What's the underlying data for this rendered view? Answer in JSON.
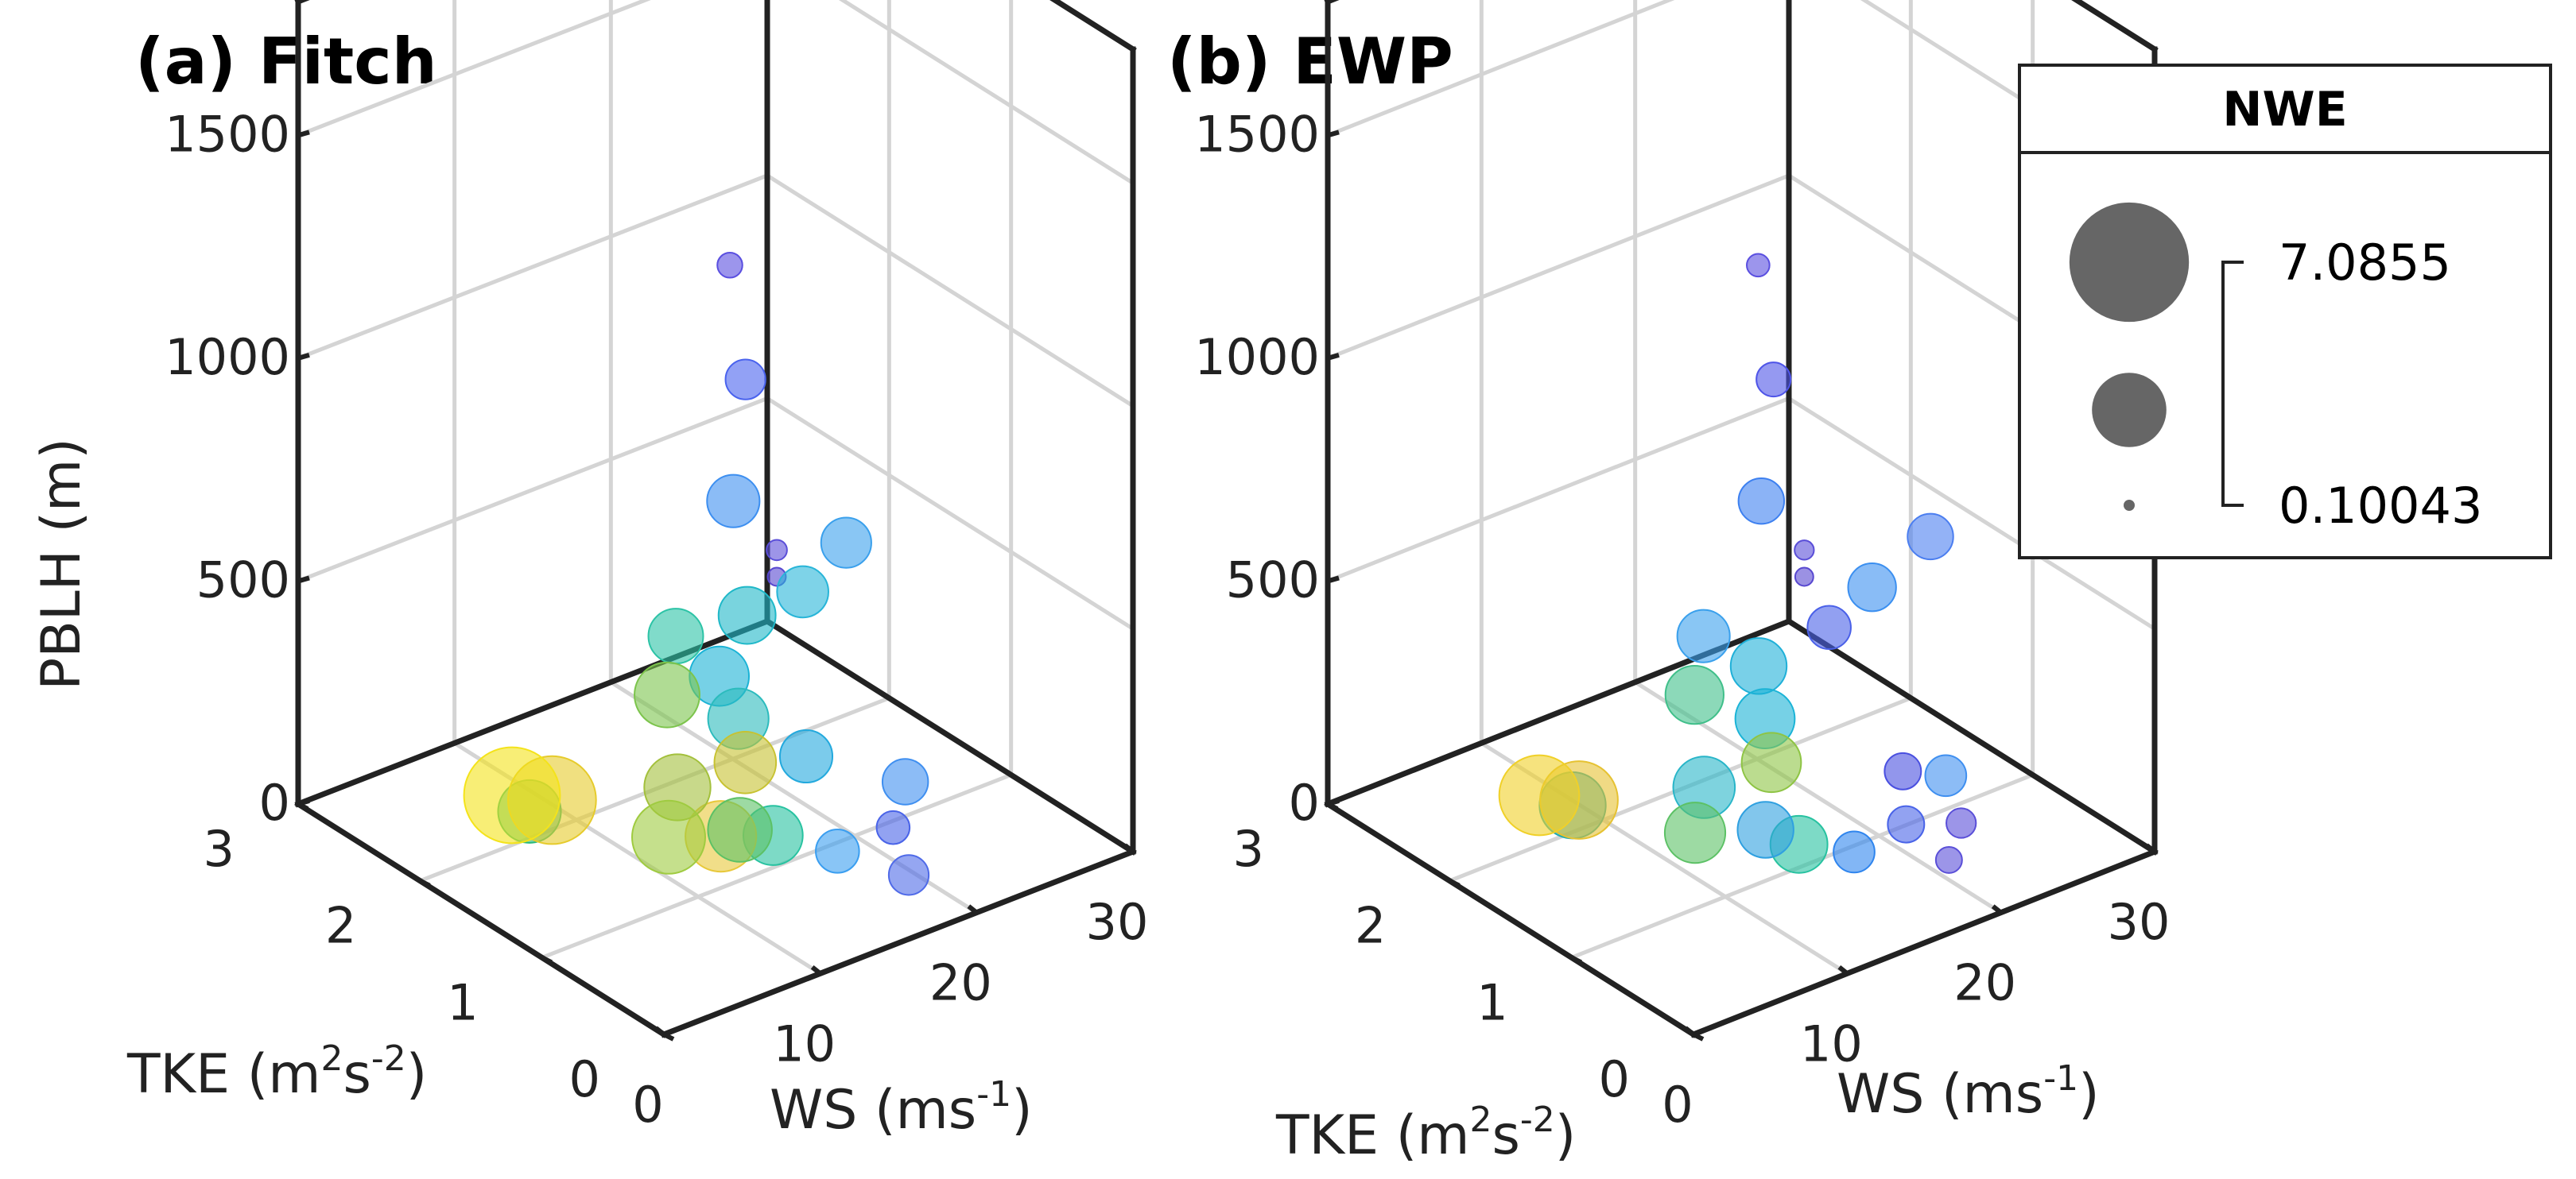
{
  "chart_data": [
    {
      "type": "scatter",
      "subtype": "3d-bubble",
      "title": "(a) Fitch",
      "xlabel": "WS (ms",
      "xlabel_sup": "-1",
      "xlabel_end": ")",
      "ylabel_parts": [
        "TKE (m",
        "2",
        "s",
        "-2",
        ")"
      ],
      "zlabel": "PBLH (m)",
      "xticks": [
        "0",
        "10",
        "20",
        "30"
      ],
      "yticks": [
        "0",
        "1",
        "2",
        "3"
      ],
      "zticks": [
        "0",
        "500",
        "1000",
        "1500"
      ],
      "xlim": [
        0,
        30
      ],
      "ylim": [
        0,
        3
      ],
      "zlim": [
        0,
        1800
      ],
      "points": [
        {
          "ws": 5,
          "tke": 0.1,
          "pblh": 1640,
          "nwe": 0.8,
          "color": "#5a4fe0"
        },
        {
          "ws": 6,
          "tke": 0.1,
          "pblh": 1370,
          "nwe": 2.1,
          "color": "#4a63ee"
        },
        {
          "ws": 6,
          "tke": 0.2,
          "pblh": 1080,
          "nwe": 3.2,
          "color": "#3d8ff0"
        },
        {
          "ws": 8,
          "tke": 0.1,
          "pblh": 960,
          "nwe": 0.4,
          "color": "#5b4fd8"
        },
        {
          "ws": 8,
          "tke": 0.1,
          "pblh": 900,
          "nwe": 0.2,
          "color": "#5848d0"
        },
        {
          "ws": 14,
          "tke": 0.3,
          "pblh": 860,
          "nwe": 3.0,
          "color": "#3aa0ec"
        },
        {
          "ws": 12,
          "tke": 0.4,
          "pblh": 760,
          "nwe": 3.1,
          "color": "#28b5d8"
        },
        {
          "ws": 10,
          "tke": 0.6,
          "pblh": 700,
          "nwe": 3.6,
          "color": "#1fb8c8"
        },
        {
          "ws": 7,
          "tke": 0.8,
          "pblh": 660,
          "nwe": 3.4,
          "color": "#2cc3a6"
        },
        {
          "ws": 9,
          "tke": 0.7,
          "pblh": 560,
          "nwe": 3.8,
          "color": "#1ab3d6"
        },
        {
          "ws": 8,
          "tke": 1.0,
          "pblh": 480,
          "nwe": 4.3,
          "color": "#7cc44c"
        },
        {
          "ws": 11,
          "tke": 0.8,
          "pblh": 420,
          "nwe": 3.9,
          "color": "#2bbbbd"
        },
        {
          "ws": 13,
          "tke": 0.5,
          "pblh": 360,
          "nwe": 3.2,
          "color": "#23a9dd"
        },
        {
          "ws": 17,
          "tke": 0.2,
          "pblh": 300,
          "nwe": 2.6,
          "color": "#3f8ff0"
        },
        {
          "ws": 17,
          "tke": 0.3,
          "pblh": 180,
          "nwe": 1.5,
          "color": "#4a64e8"
        },
        {
          "ws": 15,
          "tke": 0.5,
          "pblh": 120,
          "nwe": 2.4,
          "color": "#3a9ef0"
        },
        {
          "ws": 18,
          "tke": 0.3,
          "pblh": 60,
          "nwe": 2.1,
          "color": "#4f6ae8"
        },
        {
          "ws": 13,
          "tke": 1.0,
          "pblh": 260,
          "nwe": 4.0,
          "color": "#c7c231"
        },
        {
          "ws": 11,
          "tke": 1.3,
          "pblh": 180,
          "nwe": 4.4,
          "color": "#a3c03c"
        },
        {
          "ws": 13,
          "tke": 1.2,
          "pblh": 60,
          "nwe": 4.8,
          "color": "#e8c83a"
        },
        {
          "ws": 14,
          "tke": 0.9,
          "pblh": 100,
          "nwe": 3.8,
          "color": "#27c2a0"
        },
        {
          "ws": 12,
          "tke": 1.5,
          "pblh": 20,
          "nwe": 5.0,
          "color": "#9fcb40"
        },
        {
          "ws": 10,
          "tke": 2.2,
          "pblh": 10,
          "nwe": 6.3,
          "color": "#e6cb2c"
        },
        {
          "ws": 9,
          "tke": 2.4,
          "pblh": 0,
          "nwe": 7.0,
          "color": "#f4e31a"
        },
        {
          "ws": 7,
          "tke": 2.0,
          "pblh": 60,
          "nwe": 4.1,
          "color": "#28b87a"
        },
        {
          "ws": 15,
          "tke": 1.3,
          "pblh": 30,
          "nwe": 4.2,
          "color": "#5cc165"
        }
      ]
    },
    {
      "type": "scatter",
      "subtype": "3d-bubble",
      "title": "(b) EWP",
      "xlabel": "WS (ms",
      "xlabel_sup": "-1",
      "xlabel_end": ")",
      "ylabel_parts": [
        "TKE (m",
        "2",
        "s",
        "-2",
        ")"
      ],
      "zlabel": "",
      "xticks": [
        "0",
        "10",
        "20",
        "30"
      ],
      "yticks": [
        "0",
        "1",
        "2",
        "3"
      ],
      "zticks": [
        "0",
        "500",
        "1000",
        "1500"
      ],
      "xlim": [
        0,
        30
      ],
      "ylim": [
        0,
        3
      ],
      "zlim": [
        0,
        1800
      ],
      "points": [
        {
          "ws": 5,
          "tke": 0.1,
          "pblh": 1640,
          "nwe": 0.6,
          "color": "#5a4fe0"
        },
        {
          "ws": 6,
          "tke": 0.1,
          "pblh": 1370,
          "nwe": 1.6,
          "color": "#4f55e8"
        },
        {
          "ws": 6,
          "tke": 0.2,
          "pblh": 1080,
          "nwe": 2.6,
          "color": "#3d80f0"
        },
        {
          "ws": 8,
          "tke": 0.1,
          "pblh": 960,
          "nwe": 0.3,
          "color": "#5a4ed8"
        },
        {
          "ws": 8,
          "tke": 0.1,
          "pblh": 900,
          "nwe": 0.2,
          "color": "#5848d0"
        },
        {
          "ws": 17,
          "tke": 0.2,
          "pblh": 850,
          "nwe": 2.6,
          "color": "#4b7ef0"
        },
        {
          "ws": 14,
          "tke": 0.3,
          "pblh": 760,
          "nwe": 2.8,
          "color": "#3b8ff0"
        },
        {
          "ws": 12,
          "tke": 0.4,
          "pblh": 680,
          "nwe": 2.4,
          "color": "#4a60e8"
        },
        {
          "ws": 7,
          "tke": 0.8,
          "pblh": 660,
          "nwe": 3.2,
          "color": "#3aa0ec"
        },
        {
          "ws": 9,
          "tke": 0.6,
          "pblh": 600,
          "nwe": 3.5,
          "color": "#1fb0d8"
        },
        {
          "ws": 8,
          "tke": 1.0,
          "pblh": 480,
          "nwe": 3.7,
          "color": "#40bf8a"
        },
        {
          "ws": 11,
          "tke": 0.8,
          "pblh": 420,
          "nwe": 3.8,
          "color": "#1ab3d6"
        },
        {
          "ws": 16,
          "tke": 0.3,
          "pblh": 320,
          "nwe": 1.8,
          "color": "#4a50e0"
        },
        {
          "ws": 18,
          "tke": 0.2,
          "pblh": 300,
          "nwe": 2.2,
          "color": "#3f8ff0"
        },
        {
          "ws": 17,
          "tke": 0.4,
          "pblh": 170,
          "nwe": 1.8,
          "color": "#4a64e8"
        },
        {
          "ws": 19,
          "tke": 0.2,
          "pblh": 180,
          "nwe": 1.2,
          "color": "#5a4fd8"
        },
        {
          "ws": 19,
          "tke": 0.3,
          "pblh": 80,
          "nwe": 0.9,
          "color": "#5a4fd8"
        },
        {
          "ws": 16,
          "tke": 0.7,
          "pblh": 70,
          "nwe": 2.2,
          "color": "#2f85ee"
        },
        {
          "ws": 13,
          "tke": 1.0,
          "pblh": 260,
          "nwe": 3.8,
          "color": "#8ec444"
        },
        {
          "ws": 11,
          "tke": 1.3,
          "pblh": 180,
          "nwe": 4.0,
          "color": "#28b5c8"
        },
        {
          "ws": 14,
          "tke": 0.9,
          "pblh": 80,
          "nwe": 3.6,
          "color": "#27c2a0"
        },
        {
          "ws": 12,
          "tke": 1.5,
          "pblh": 30,
          "nwe": 3.9,
          "color": "#5cc165"
        },
        {
          "ws": 10,
          "tke": 2.2,
          "pblh": 10,
          "nwe": 5.4,
          "color": "#e6c232"
        },
        {
          "ws": 9,
          "tke": 2.4,
          "pblh": 0,
          "nwe": 5.6,
          "color": "#f0d028"
        },
        {
          "ws": 8,
          "tke": 2.0,
          "pblh": 60,
          "nwe": 4.4,
          "color": "#22aab0"
        },
        {
          "ws": 15,
          "tke": 1.3,
          "pblh": 30,
          "nwe": 3.5,
          "color": "#2fa0e0"
        }
      ]
    }
  ],
  "legend": {
    "title": "NWE",
    "max_label": "7.0855",
    "min_label": "0.10043",
    "marker_color": "#666666",
    "max_value": 7.0855,
    "mid_value": 4.0,
    "min_value": 0.10043
  }
}
